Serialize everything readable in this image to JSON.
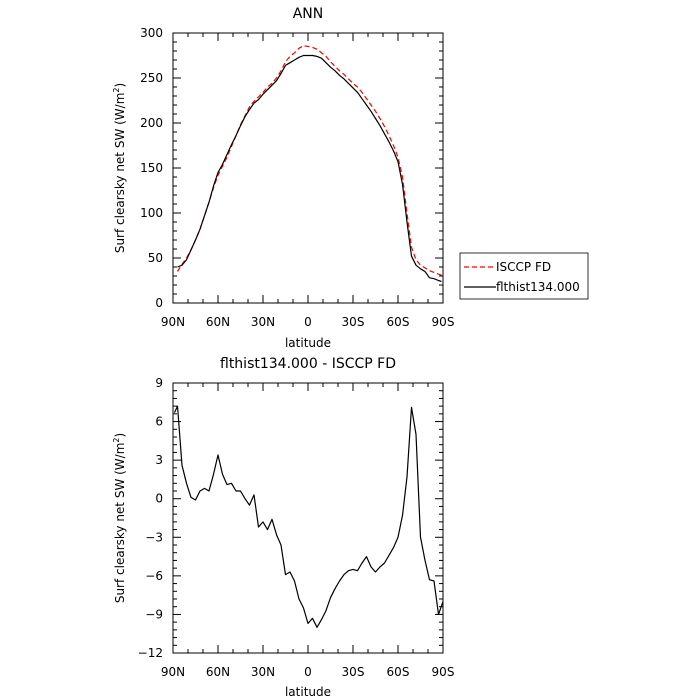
{
  "chart_data": [
    {
      "type": "line",
      "title": "ANN",
      "xlabel": "latitude",
      "ylabel": "Surf clearsky net SW (W/m",
      "ylabel_sup": "2",
      "ylabel_close": ")",
      "xlim": [
        90,
        -90
      ],
      "ylim": [
        0,
        300
      ],
      "xticks": [
        90,
        60,
        30,
        0,
        -30,
        -60,
        -90
      ],
      "xtick_labels": [
        "90N",
        "60N",
        "30N",
        "0",
        "30S",
        "60S",
        "90S"
      ],
      "yticks": [
        0,
        50,
        100,
        150,
        200,
        250,
        300
      ],
      "ytick_labels": [
        "0",
        "50",
        "100",
        "150",
        "200",
        "250",
        "300"
      ],
      "legend_position": "right",
      "series": [
        {
          "name": "ISCCP FD",
          "color": "#ff0000",
          "dash": "dashed",
          "points": [
            [
              87,
              35
            ],
            [
              84,
              43
            ],
            [
              81,
              50
            ],
            [
              78,
              59
            ],
            [
              75,
              70
            ],
            [
              72,
              82
            ],
            [
              69,
              97
            ],
            [
              66,
              112
            ],
            [
              63,
              128
            ],
            [
              60,
              142
            ],
            [
              57,
              152
            ],
            [
              54,
              162
            ],
            [
              51,
              174
            ],
            [
              48,
              186
            ],
            [
              45,
              198
            ],
            [
              42,
              208
            ],
            [
              39,
              218
            ],
            [
              36,
              224
            ],
            [
              33,
              229
            ],
            [
              30,
              234
            ],
            [
              27,
              240
            ],
            [
              24,
              244
            ],
            [
              21,
              250
            ],
            [
              18,
              258
            ],
            [
              15,
              268
            ],
            [
              12,
              274
            ],
            [
              9,
              278
            ],
            [
              6,
              283
            ],
            [
              3,
              286
            ],
            [
              0,
              285
            ],
            [
              -3,
              284
            ],
            [
              -6,
              282
            ],
            [
              -9,
              278
            ],
            [
              -12,
              274
            ],
            [
              -15,
              268
            ],
            [
              -18,
              263
            ],
            [
              -21,
              258
            ],
            [
              -24,
              254
            ],
            [
              -27,
              249
            ],
            [
              -30,
              244
            ],
            [
              -33,
              240
            ],
            [
              -36,
              234
            ],
            [
              -39,
              227
            ],
            [
              -42,
              220
            ],
            [
              -45,
              213
            ],
            [
              -48,
              205
            ],
            [
              -51,
              196
            ],
            [
              -54,
              186
            ],
            [
              -57,
              175
            ],
            [
              -60,
              162
            ],
            [
              -63,
              140
            ],
            [
              -66,
              100
            ],
            [
              -69,
              62
            ],
            [
              -72,
              48
            ],
            [
              -75,
              42
            ],
            [
              -78,
              39
            ],
            [
              -81,
              36
            ],
            [
              -84,
              34
            ],
            [
              -87,
              32
            ],
            [
              -89,
              31
            ]
          ]
        },
        {
          "name": "flthist134.000",
          "color": "#000000",
          "dash": "solid",
          "points": [
            [
              87,
              40
            ],
            [
              84,
              42
            ],
            [
              81,
              48
            ],
            [
              78,
              59
            ],
            [
              75,
              70
            ],
            [
              72,
              82
            ],
            [
              69,
              97
            ],
            [
              66,
              112
            ],
            [
              63,
              130
            ],
            [
              60,
              145
            ],
            [
              57,
              154
            ],
            [
              54,
              165
            ],
            [
              51,
              176
            ],
            [
              48,
              186
            ],
            [
              45,
              197
            ],
            [
              42,
              207
            ],
            [
              39,
              215
            ],
            [
              36,
              222
            ],
            [
              33,
              226
            ],
            [
              30,
              232
            ],
            [
              27,
              237
            ],
            [
              24,
              242
            ],
            [
              21,
              247
            ],
            [
              18,
              255
            ],
            [
              15,
              264
            ],
            [
              12,
              267
            ],
            [
              9,
              270
            ],
            [
              6,
              273
            ],
            [
              3,
              275
            ],
            [
              0,
              275
            ],
            [
              -3,
              275
            ],
            [
              -6,
              274
            ],
            [
              -9,
              272
            ],
            [
              -12,
              267
            ],
            [
              -15,
              262
            ],
            [
              -18,
              258
            ],
            [
              -21,
              253
            ],
            [
              -24,
              249
            ],
            [
              -27,
              244
            ],
            [
              -30,
              239
            ],
            [
              -33,
              234
            ],
            [
              -36,
              227
            ],
            [
              -39,
              220
            ],
            [
              -42,
              213
            ],
            [
              -45,
              205
            ],
            [
              -48,
              197
            ],
            [
              -51,
              188
            ],
            [
              -54,
              179
            ],
            [
              -57,
              169
            ],
            [
              -60,
              157
            ],
            [
              -63,
              132
            ],
            [
              -66,
              90
            ],
            [
              -69,
              52
            ],
            [
              -72,
              42
            ],
            [
              -75,
              38
            ],
            [
              -78,
              35
            ],
            [
              -81,
              28
            ],
            [
              -84,
              27
            ],
            [
              -87,
              25
            ],
            [
              -89,
              24
            ]
          ]
        }
      ]
    },
    {
      "type": "line",
      "title": "flthist134.000 - ISCCP FD",
      "xlabel": "latitude",
      "ylabel": "Surf clearsky net SW (W/m",
      "ylabel_sup": "2",
      "ylabel_close": ")",
      "xlim": [
        90,
        -90
      ],
      "ylim": [
        -12,
        9
      ],
      "xticks": [
        90,
        60,
        30,
        0,
        -30,
        -60,
        -90
      ],
      "xtick_labels": [
        "90N",
        "60N",
        "30N",
        "0",
        "30S",
        "60S",
        "90S"
      ],
      "yticks": [
        -12,
        -9,
        -6,
        -3,
        0,
        3,
        6,
        9
      ],
      "ytick_labels": [
        "-12",
        "-9",
        "-6",
        "-3",
        "0",
        "3",
        "6",
        "9"
      ],
      "series": [
        {
          "color": "#000000",
          "dash": "solid",
          "points": [
            [
              89,
              6.7
            ],
            [
              87,
              7.2
            ],
            [
              84,
              2.6
            ],
            [
              81,
              1.2
            ],
            [
              78,
              0.1
            ],
            [
              75,
              -0.1
            ],
            [
              72,
              0.6
            ],
            [
              69,
              0.8
            ],
            [
              66,
              0.6
            ],
            [
              63,
              1.9
            ],
            [
              60,
              3.4
            ],
            [
              57,
              1.9
            ],
            [
              54,
              1.1
            ],
            [
              51,
              1.2
            ],
            [
              48,
              0.6
            ],
            [
              45,
              0.6
            ],
            [
              42,
              0.0
            ],
            [
              39,
              -0.5
            ],
            [
              36,
              0.3
            ],
            [
              33,
              -2.2
            ],
            [
              30,
              -1.8
            ],
            [
              27,
              -2.4
            ],
            [
              24,
              -1.6
            ],
            [
              21,
              -2.8
            ],
            [
              18,
              -3.6
            ],
            [
              15,
              -5.9
            ],
            [
              12,
              -5.7
            ],
            [
              9,
              -6.4
            ],
            [
              6,
              -7.8
            ],
            [
              3,
              -8.5
            ],
            [
              0,
              -9.7
            ],
            [
              -3,
              -9.3
            ],
            [
              -6,
              -10.0
            ],
            [
              -9,
              -9.4
            ],
            [
              -12,
              -8.7
            ],
            [
              -15,
              -7.7
            ],
            [
              -18,
              -7.0
            ],
            [
              -21,
              -6.4
            ],
            [
              -24,
              -5.9
            ],
            [
              -27,
              -5.6
            ],
            [
              -30,
              -5.5
            ],
            [
              -33,
              -5.6
            ],
            [
              -36,
              -5.0
            ],
            [
              -39,
              -4.5
            ],
            [
              -42,
              -5.3
            ],
            [
              -45,
              -5.7
            ],
            [
              -48,
              -5.3
            ],
            [
              -51,
              -5.0
            ],
            [
              -54,
              -4.4
            ],
            [
              -57,
              -3.8
            ],
            [
              -60,
              -3.0
            ],
            [
              -63,
              -1.3
            ],
            [
              -66,
              1.7
            ],
            [
              -69,
              7.1
            ],
            [
              -72,
              5.0
            ],
            [
              -75,
              -3.0
            ],
            [
              -78,
              -4.8
            ],
            [
              -81,
              -6.3
            ],
            [
              -84,
              -6.4
            ],
            [
              -87,
              -9.0
            ],
            [
              -90,
              -8.0
            ],
            [
              -93,
              -8.0
            ]
          ]
        }
      ]
    }
  ]
}
